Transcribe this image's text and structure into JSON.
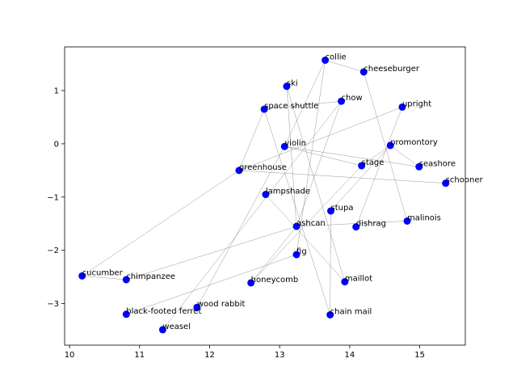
{
  "chart_data": {
    "type": "scatter",
    "title": "",
    "xlabel": "",
    "ylabel": "",
    "xlim": [
      9.93,
      15.65
    ],
    "ylim": [
      -3.78,
      1.82
    ],
    "xticks": [
      10,
      11,
      12,
      13,
      14,
      15
    ],
    "yticks": [
      -3,
      -2,
      -1,
      0,
      1
    ],
    "grid": false,
    "marker_color": "#0000ff",
    "edge_color": "#808080",
    "points": [
      {
        "name": "collie",
        "x": 13.65,
        "y": 1.57
      },
      {
        "name": "cheeseburger",
        "x": 14.2,
        "y": 1.35
      },
      {
        "name": "ski",
        "x": 13.1,
        "y": 1.08
      },
      {
        "name": "chow",
        "x": 13.88,
        "y": 0.8
      },
      {
        "name": "upright",
        "x": 14.75,
        "y": 0.69
      },
      {
        "name": "space shuttle",
        "x": 12.78,
        "y": 0.65
      },
      {
        "name": "violin",
        "x": 13.07,
        "y": -0.05
      },
      {
        "name": "promontory",
        "x": 14.58,
        "y": -0.03
      },
      {
        "name": "seashore",
        "x": 14.99,
        "y": -0.43
      },
      {
        "name": "stage",
        "x": 14.17,
        "y": -0.41
      },
      {
        "name": "greenhouse",
        "x": 12.42,
        "y": -0.5
      },
      {
        "name": "schooner",
        "x": 15.37,
        "y": -0.74
      },
      {
        "name": "lampshade",
        "x": 12.8,
        "y": -0.95
      },
      {
        "name": "stupa",
        "x": 13.73,
        "y": -1.26
      },
      {
        "name": "malinois",
        "x": 14.82,
        "y": -1.45
      },
      {
        "name": "ashcan",
        "x": 13.24,
        "y": -1.55
      },
      {
        "name": "dishrag",
        "x": 14.09,
        "y": -1.56
      },
      {
        "name": "fig",
        "x": 13.24,
        "y": -2.08
      },
      {
        "name": "cucumber",
        "x": 10.18,
        "y": -2.48
      },
      {
        "name": "chimpanzee",
        "x": 10.81,
        "y": -2.55
      },
      {
        "name": "honeycomb",
        "x": 12.59,
        "y": -2.61
      },
      {
        "name": "maillot",
        "x": 13.93,
        "y": -2.59
      },
      {
        "name": "wood rabbit",
        "x": 11.82,
        "y": -3.07
      },
      {
        "name": "black-footed ferret",
        "x": 10.81,
        "y": -3.2
      },
      {
        "name": "chain mail",
        "x": 13.72,
        "y": -3.21
      },
      {
        "name": "weasel",
        "x": 11.33,
        "y": -3.49
      }
    ],
    "edges": [
      [
        "collie",
        "cheeseburger"
      ],
      [
        "collie",
        "violin"
      ],
      [
        "collie",
        "fig"
      ],
      [
        "cheeseburger",
        "malinois"
      ],
      [
        "ski",
        "maillot"
      ],
      [
        "ski",
        "ashcan"
      ],
      [
        "chow",
        "space shuttle"
      ],
      [
        "chow",
        "ashcan"
      ],
      [
        "chow",
        "weasel"
      ],
      [
        "upright",
        "dishrag"
      ],
      [
        "space shuttle",
        "chain mail"
      ],
      [
        "space shuttle",
        "greenhouse"
      ],
      [
        "violin",
        "stage"
      ],
      [
        "violin",
        "seashore"
      ],
      [
        "violin",
        "wood rabbit"
      ],
      [
        "promontory",
        "seashore"
      ],
      [
        "promontory",
        "stage"
      ],
      [
        "promontory",
        "stupa"
      ],
      [
        "stage",
        "honeycomb"
      ],
      [
        "greenhouse",
        "schooner"
      ],
      [
        "greenhouse",
        "upright"
      ],
      [
        "greenhouse",
        "cucumber"
      ],
      [
        "lampshade",
        "maillot"
      ],
      [
        "stupa",
        "chain mail"
      ],
      [
        "malinois",
        "ashcan"
      ],
      [
        "ashcan",
        "chimpanzee"
      ],
      [
        "ashcan",
        "honeycomb"
      ],
      [
        "cucumber",
        "chimpanzee"
      ],
      [
        "black-footed ferret",
        "fig"
      ]
    ]
  }
}
